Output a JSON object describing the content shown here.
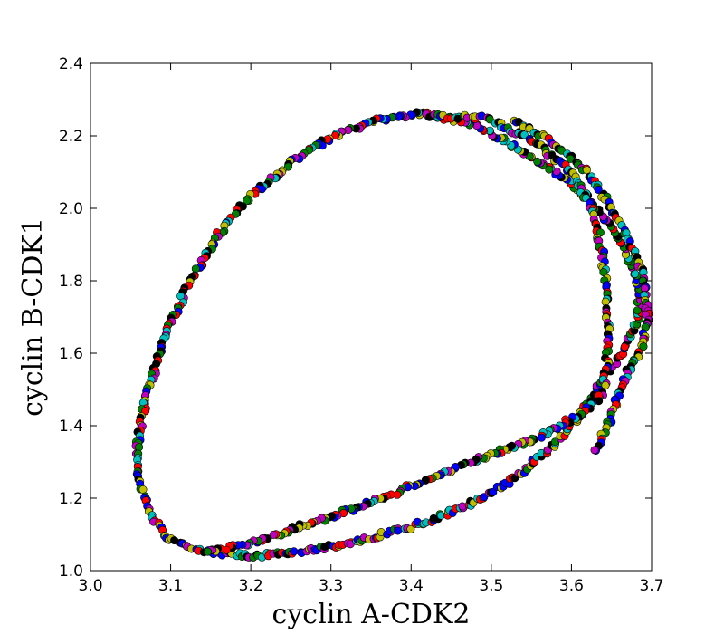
{
  "chart_data": {
    "type": "scatter",
    "title": "",
    "xlabel": "cyclin A-CDK2",
    "ylabel": "cyclin B-CDK1",
    "xlim": [
      3.0,
      3.7
    ],
    "ylim": [
      1.0,
      2.4
    ],
    "xticks": [
      "3.0",
      "3.1",
      "3.2",
      "3.3",
      "3.4",
      "3.5",
      "3.6",
      "3.7"
    ],
    "yticks": [
      "1.0",
      "1.2",
      "1.4",
      "1.6",
      "1.8",
      "2.0",
      "2.2",
      "2.4"
    ],
    "grid": false,
    "legend": "none",
    "marker_colors": [
      "#ff0000",
      "#0000ff",
      "#008000",
      "#000000",
      "#bfbf00",
      "#00bfbf",
      "#bf00bf"
    ],
    "series": [
      {
        "points": [
          [
            3.42,
            2.265
          ],
          [
            3.35,
            2.24
          ],
          [
            3.3,
            2.195
          ],
          [
            3.25,
            2.125
          ],
          [
            3.2,
            2.035
          ],
          [
            3.16,
            1.93
          ],
          [
            3.12,
            1.78
          ],
          [
            3.09,
            1.63
          ],
          [
            3.07,
            1.48
          ],
          [
            3.058,
            1.35
          ],
          [
            3.058,
            1.28
          ],
          [
            3.07,
            1.18
          ],
          [
            3.09,
            1.1
          ],
          [
            3.13,
            1.055
          ],
          [
            3.2,
            1.04
          ],
          [
            3.26,
            1.05
          ],
          [
            3.33,
            1.08
          ],
          [
            3.4,
            1.12
          ],
          [
            3.46,
            1.17
          ],
          [
            3.52,
            1.24
          ],
          [
            3.57,
            1.33
          ],
          [
            3.6,
            1.4
          ],
          [
            3.63,
            1.49
          ],
          [
            3.65,
            1.56
          ],
          [
            3.67,
            1.63
          ],
          [
            3.685,
            1.7
          ],
          [
            3.685,
            1.78
          ],
          [
            3.67,
            1.87
          ],
          [
            3.65,
            1.95
          ],
          [
            3.62,
            2.03
          ],
          [
            3.58,
            2.1
          ],
          [
            3.53,
            2.17
          ],
          [
            3.48,
            2.23
          ],
          [
            3.42,
            2.26
          ]
        ]
      },
      {
        "points": [
          [
            3.42,
            2.255
          ],
          [
            3.49,
            2.25
          ],
          [
            3.55,
            2.19
          ],
          [
            3.6,
            2.1
          ],
          [
            3.63,
            1.98
          ],
          [
            3.64,
            1.85
          ],
          [
            3.645,
            1.72
          ],
          [
            3.645,
            1.6
          ],
          [
            3.64,
            1.49
          ],
          [
            3.61,
            1.43
          ],
          [
            3.56,
            1.37
          ],
          [
            3.5,
            1.32
          ],
          [
            3.44,
            1.27
          ],
          [
            3.38,
            1.215
          ],
          [
            3.32,
            1.165
          ],
          [
            3.26,
            1.12
          ],
          [
            3.2,
            1.075
          ],
          [
            3.14,
            1.05
          ]
        ]
      },
      {
        "points": [
          [
            3.53,
            2.24
          ],
          [
            3.58,
            2.18
          ],
          [
            3.62,
            2.1
          ],
          [
            3.65,
            2.0
          ],
          [
            3.67,
            1.92
          ],
          [
            3.69,
            1.82
          ],
          [
            3.695,
            1.72
          ],
          [
            3.69,
            1.62
          ],
          [
            3.67,
            1.55
          ],
          [
            3.65,
            1.43
          ],
          [
            3.63,
            1.32
          ]
        ]
      }
    ]
  }
}
